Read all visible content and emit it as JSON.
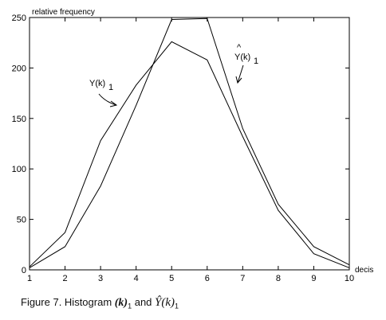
{
  "chart_data": {
    "type": "line",
    "x": [
      1,
      2,
      3,
      4,
      5,
      6,
      7,
      8,
      9,
      10
    ],
    "series": [
      {
        "name": "Y(k)1",
        "values": [
          3,
          37,
          128,
          183,
          226,
          208,
          132,
          59,
          16,
          2
        ]
      },
      {
        "name": "^Y(k)1",
        "values": [
          2,
          23,
          83,
          163,
          248,
          249,
          140,
          65,
          23,
          5
        ]
      }
    ],
    "xlabel": "decis",
    "ylabel": "relative frequency",
    "xlim": [
      1,
      10
    ],
    "ylim": [
      0,
      250
    ],
    "xticks": [
      1,
      2,
      3,
      4,
      5,
      6,
      7,
      8,
      9,
      10
    ],
    "yticks": [
      0,
      50,
      100,
      150,
      200,
      250
    ],
    "grid": false,
    "annotations": {
      "observed": "Y(k)",
      "observed_sub": "1",
      "estimated": "Y(k)",
      "estimated_sub": "1",
      "estimated_hat": "^"
    }
  },
  "caption": {
    "prefix": "Figure 7. Histogram ",
    "k": "(k)",
    "sub1": "1",
    "and": " and ",
    "yhat": "Ŷ(k)",
    "sub2": "1"
  }
}
